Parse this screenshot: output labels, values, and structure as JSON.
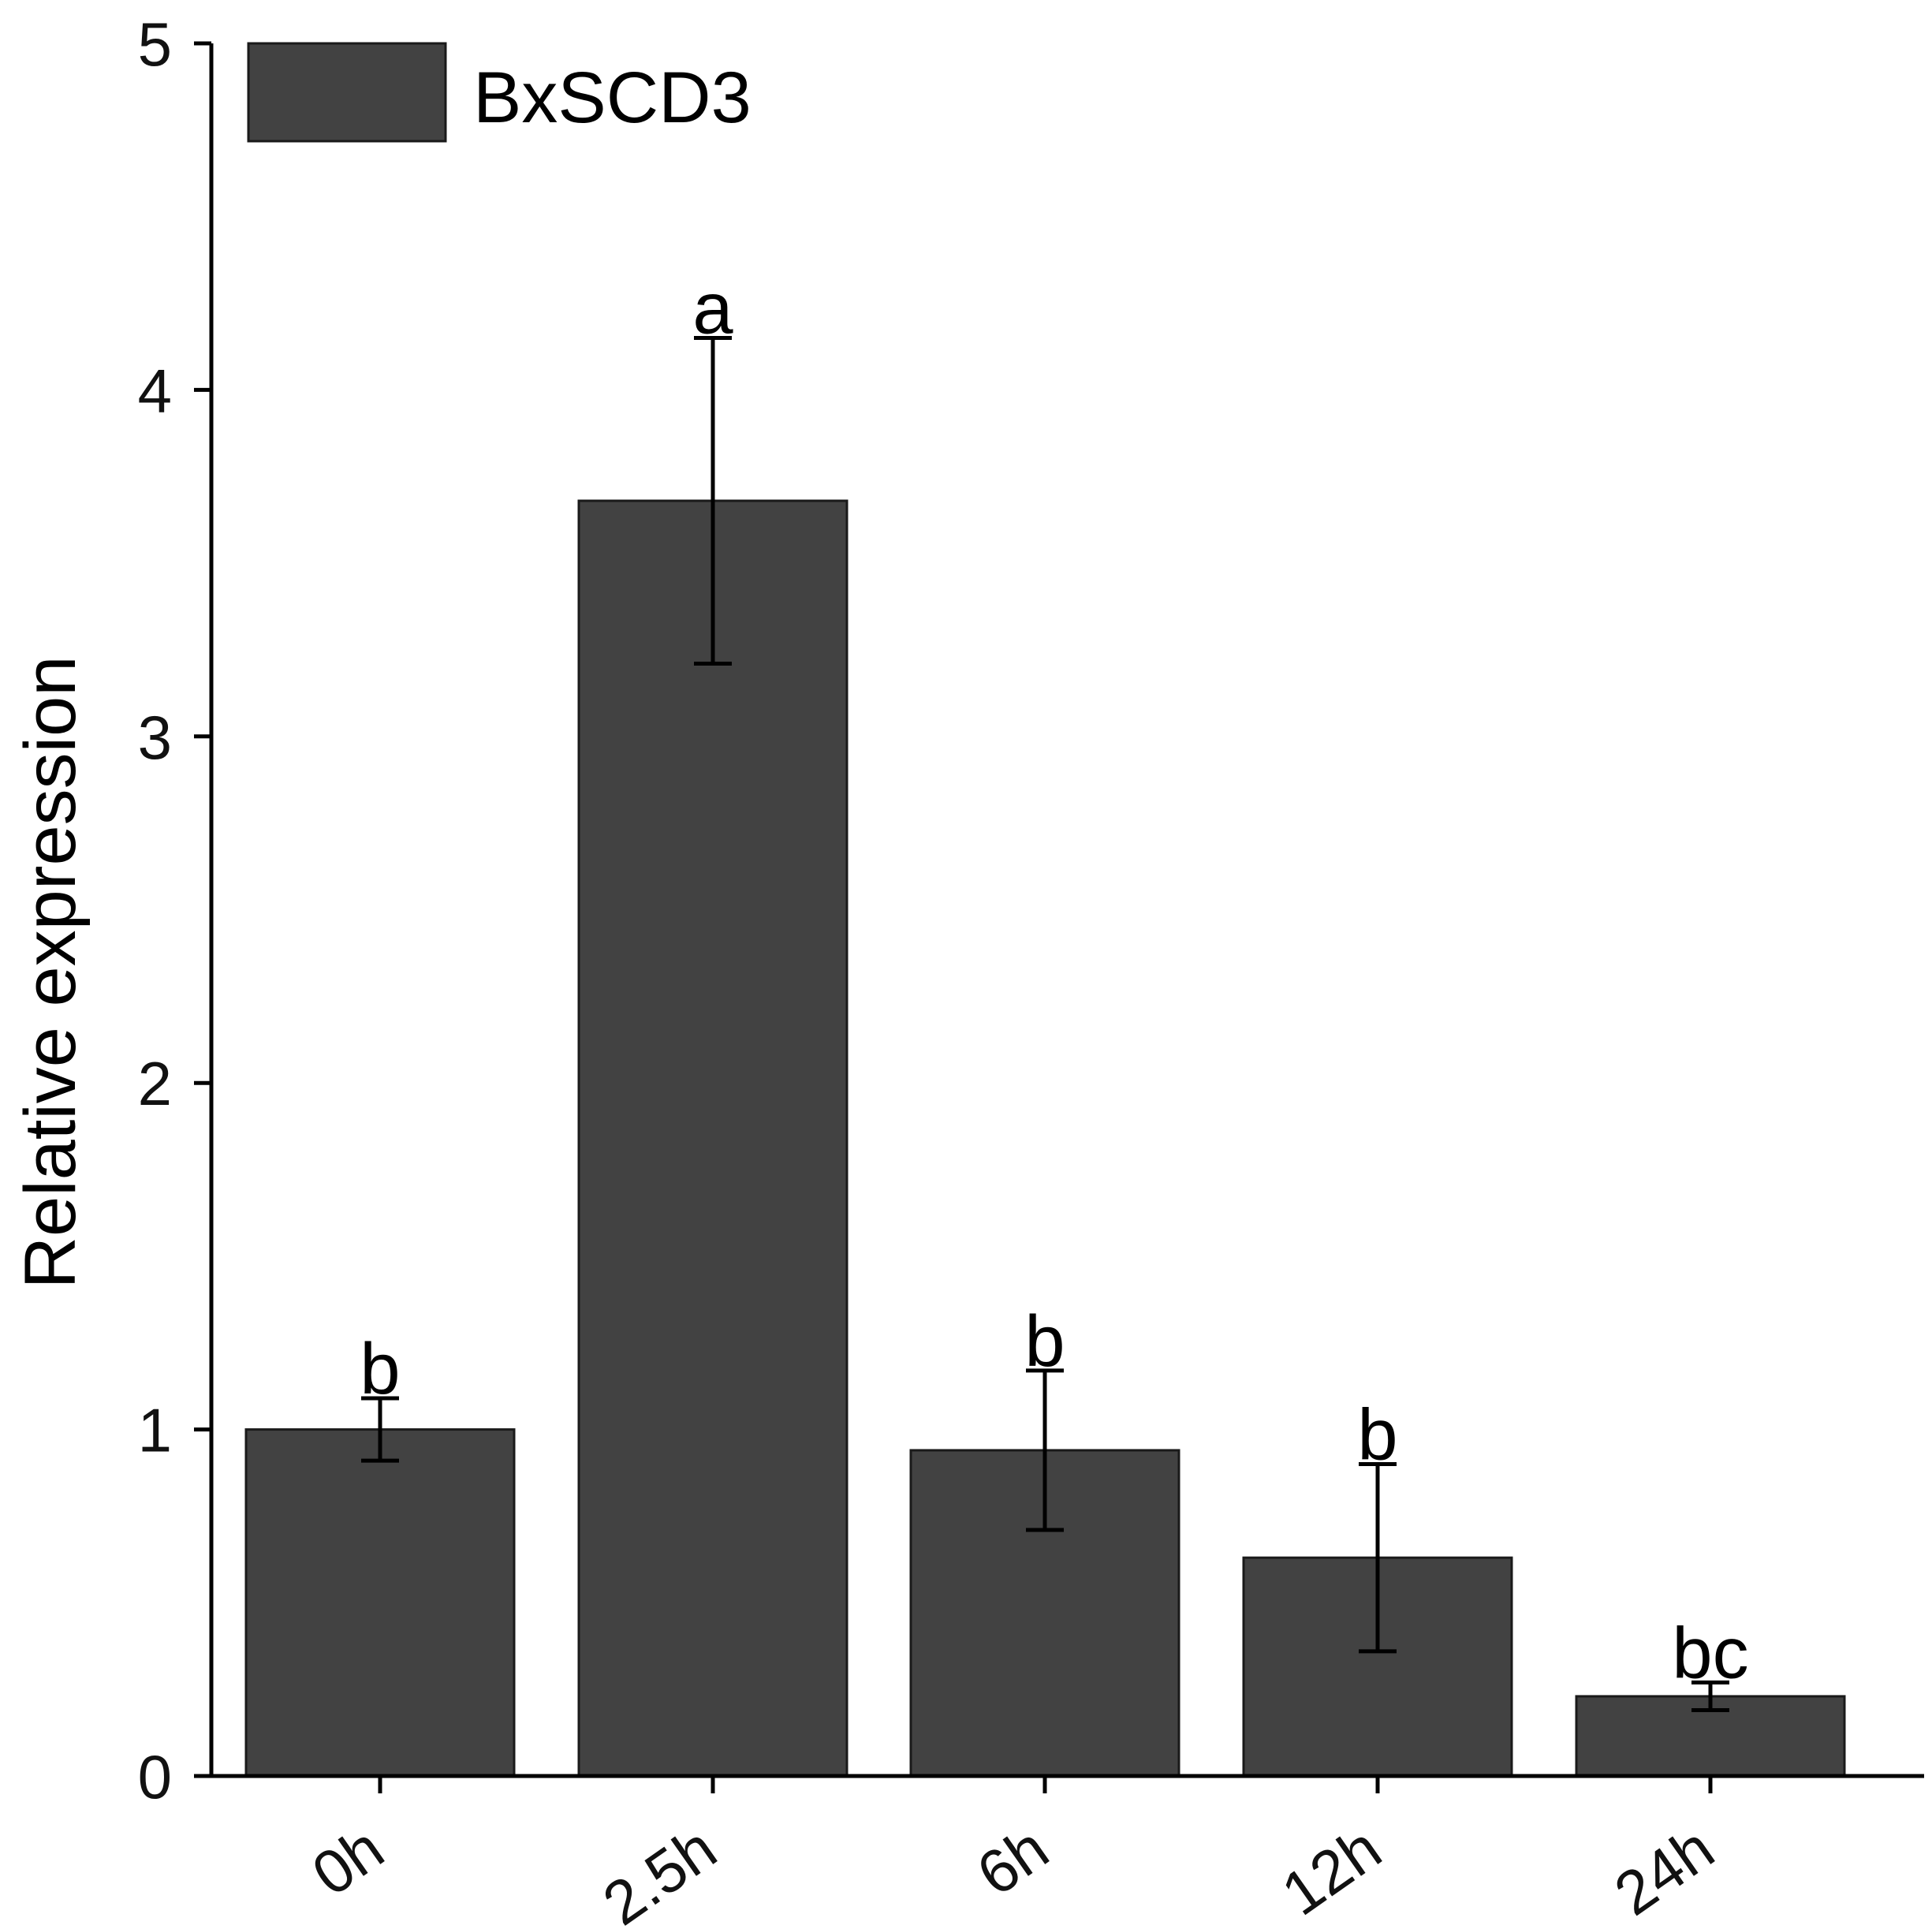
{
  "chart_data": {
    "type": "bar",
    "title": "",
    "xlabel": "",
    "ylabel": "Relative expression",
    "ylim": [
      0,
      5
    ],
    "yticks": [
      "0",
      "1",
      "2",
      "3",
      "4",
      "5"
    ],
    "categories": [
      "0h",
      "2.5h",
      "6h",
      "12h",
      "24h"
    ],
    "series": [
      {
        "name": "BxSCD3",
        "color": "#424242",
        "values": [
          1.0,
          3.68,
          0.94,
          0.63,
          0.23
        ],
        "errors": [
          0.09,
          0.47,
          0.23,
          0.27,
          0.04
        ],
        "significance": [
          "b",
          "a",
          "b",
          "b",
          "bc"
        ]
      }
    ],
    "legend": {
      "position": "top-left",
      "label": "BxSCD3"
    }
  }
}
